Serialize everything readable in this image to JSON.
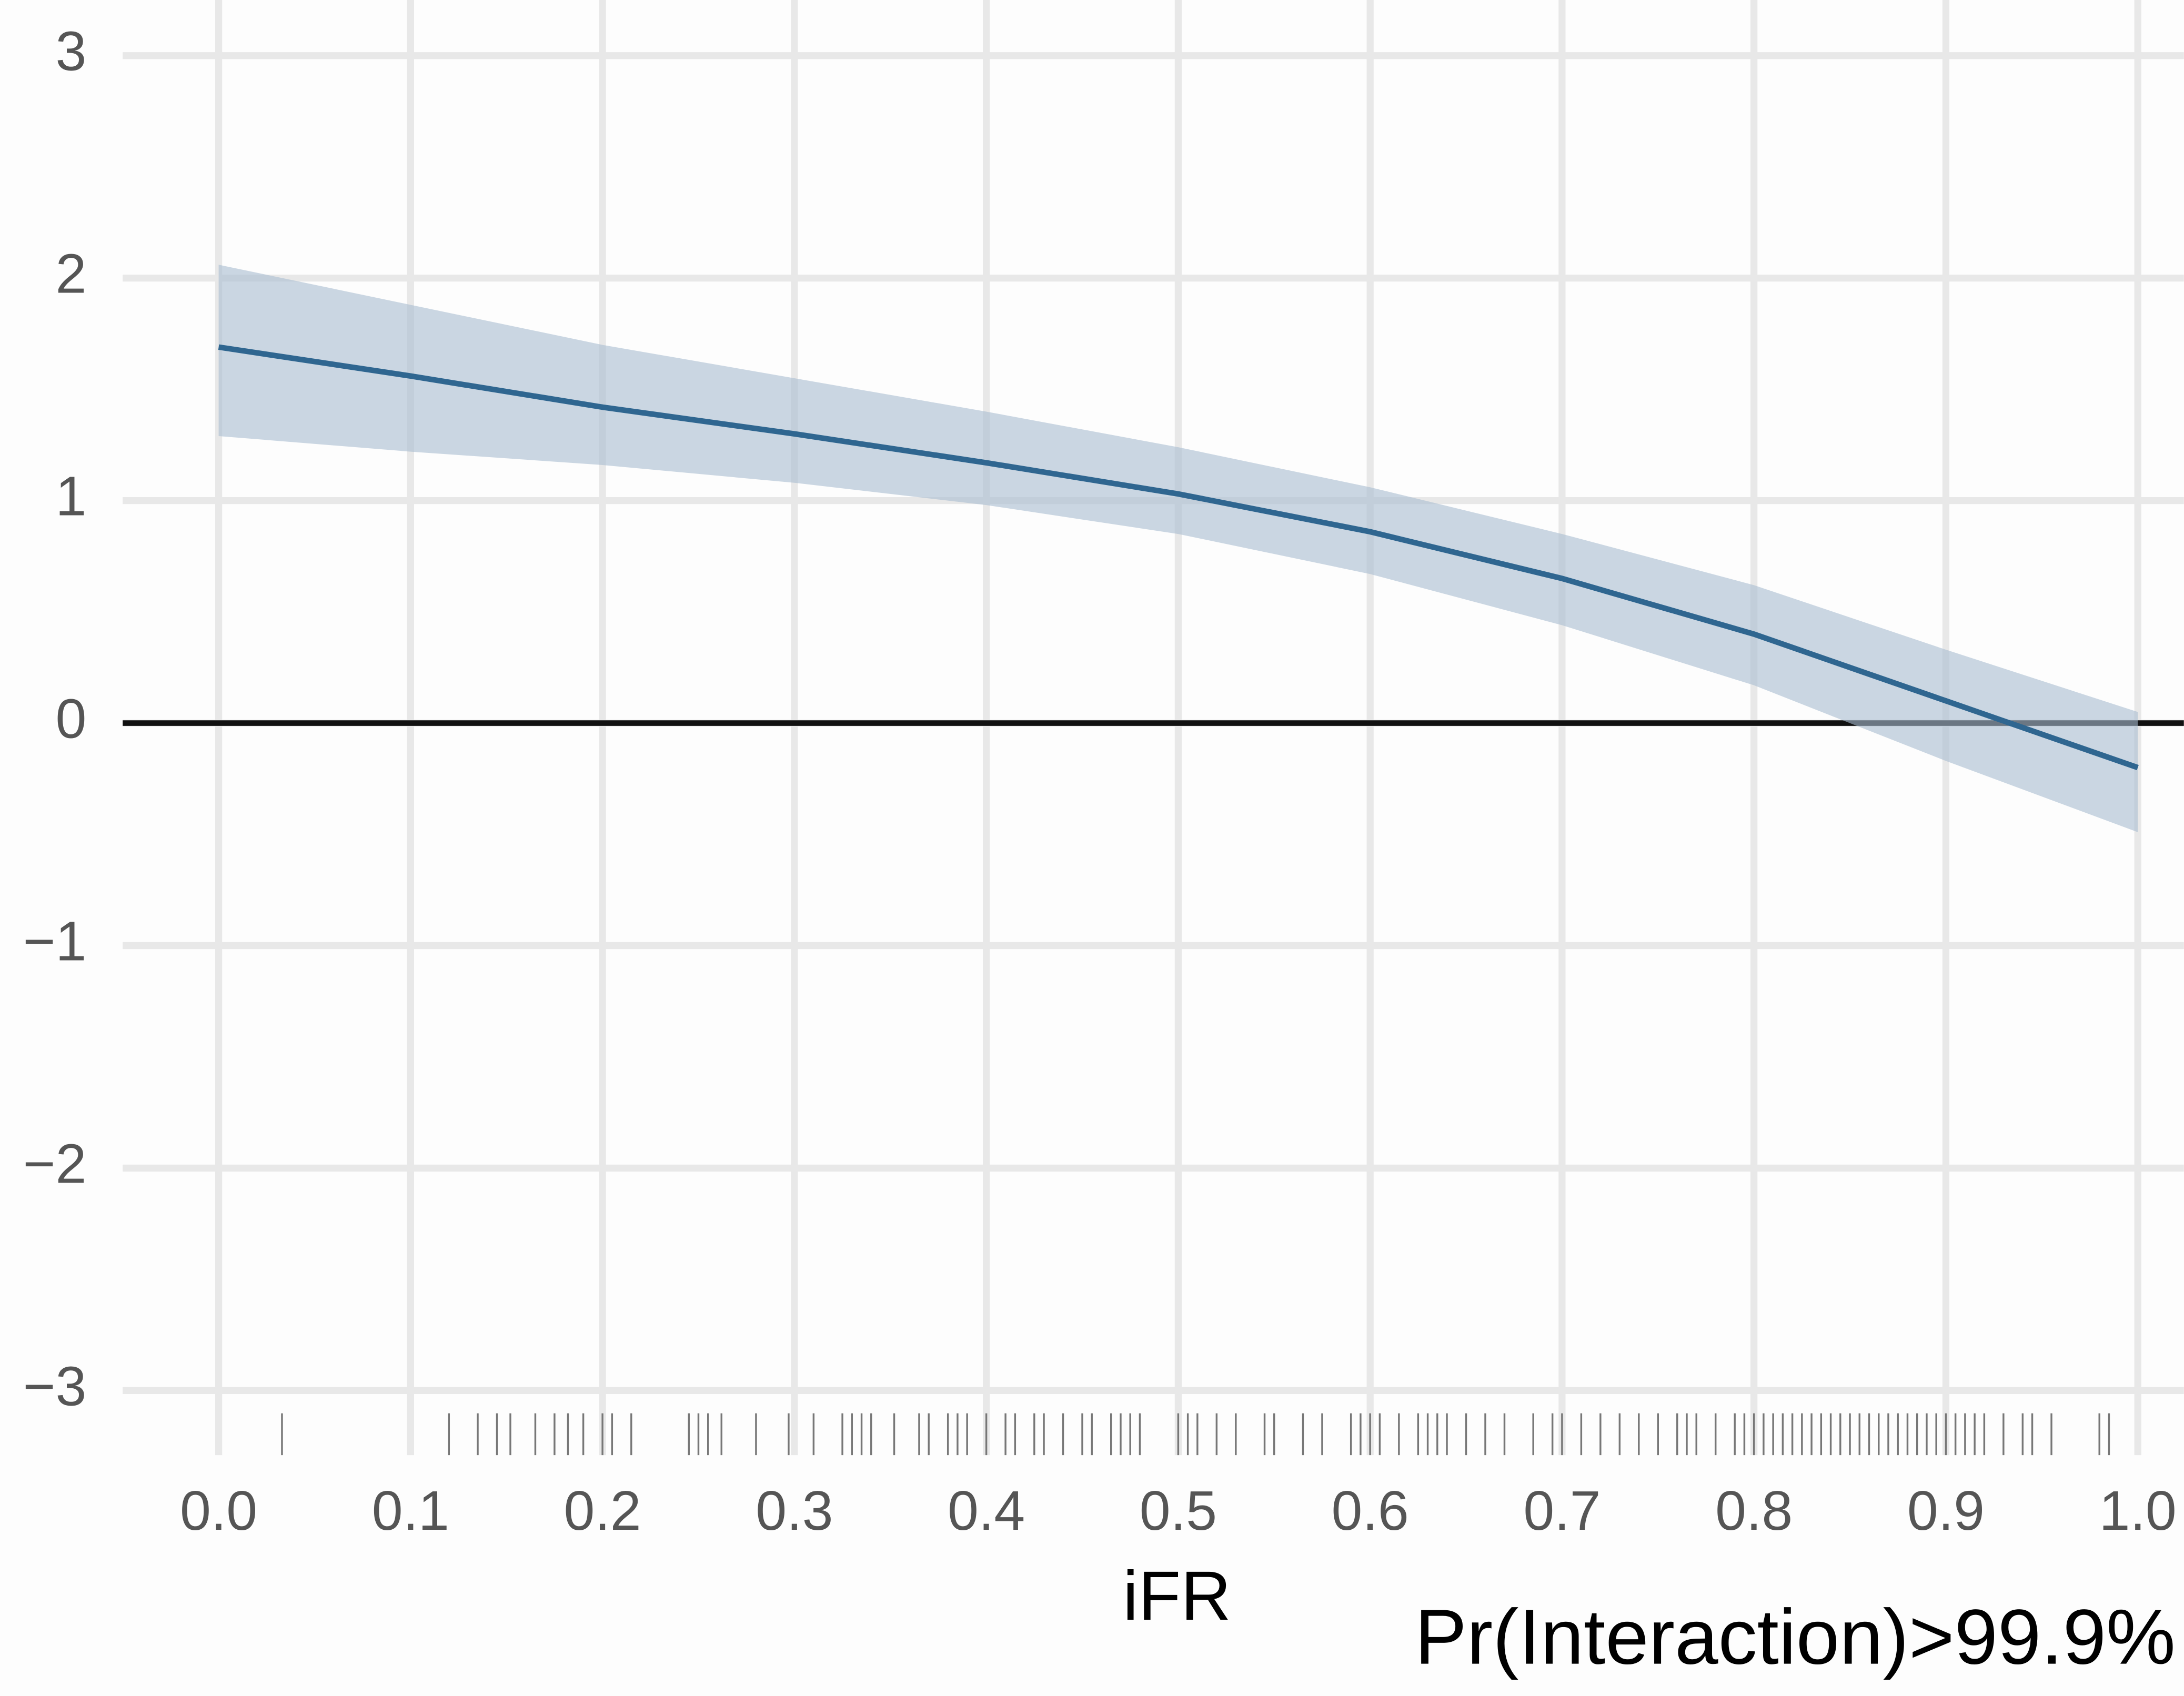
{
  "chart_data": {
    "type": "line",
    "x_label": "iFR",
    "annotation": "Pr(Interaction)>99.9%",
    "x": [
      0,
      0.1,
      0.2,
      0.3,
      0.4,
      0.5,
      0.6,
      0.7,
      0.8,
      0.9,
      1.0
    ],
    "series": [
      {
        "color": "#2f6690",
        "values": [
          1.69,
          1.56,
          1.42,
          1.3,
          1.17,
          1.03,
          0.86,
          0.65,
          0.4,
          0.1,
          -0.2
        ]
      }
    ],
    "band": {
      "color": "#a9bdd0",
      "lower": [
        1.29,
        1.22,
        1.16,
        1.08,
        0.98,
        0.85,
        0.67,
        0.44,
        0.17,
        -0.17,
        -0.49
      ],
      "upper": [
        2.06,
        1.88,
        1.7,
        1.55,
        1.4,
        1.24,
        1.06,
        0.85,
        0.62,
        0.33,
        0.05
      ]
    },
    "reference_line": 0,
    "rug": [
      0.033,
      0.12,
      0.135,
      0.145,
      0.152,
      0.165,
      0.175,
      0.182,
      0.19,
      0.2,
      0.205,
      0.215,
      0.245,
      0.25,
      0.255,
      0.262,
      0.28,
      0.297,
      0.31,
      0.325,
      0.33,
      0.335,
      0.34,
      0.352,
      0.365,
      0.37,
      0.38,
      0.385,
      0.39,
      0.4,
      0.41,
      0.415,
      0.425,
      0.43,
      0.44,
      0.45,
      0.455,
      0.465,
      0.47,
      0.475,
      0.48,
      0.5,
      0.505,
      0.51,
      0.52,
      0.53,
      0.545,
      0.55,
      0.565,
      0.575,
      0.59,
      0.595,
      0.6,
      0.605,
      0.615,
      0.625,
      0.63,
      0.635,
      0.64,
      0.65,
      0.66,
      0.67,
      0.685,
      0.695,
      0.7,
      0.71,
      0.72,
      0.73,
      0.74,
      0.75,
      0.76,
      0.765,
      0.77,
      0.78,
      0.79,
      0.795,
      0.8,
      0.805,
      0.81,
      0.815,
      0.82,
      0.825,
      0.83,
      0.835,
      0.84,
      0.845,
      0.85,
      0.855,
      0.86,
      0.865,
      0.87,
      0.875,
      0.88,
      0.885,
      0.89,
      0.895,
      0.9,
      0.905,
      0.91,
      0.915,
      0.92,
      0.93,
      0.94,
      0.945,
      0.955,
      0.98,
      0.985
    ],
    "xlim": [
      -0.05,
      1.024
    ],
    "ylim": [
      -3.29,
      3.25
    ],
    "xticks": [
      {
        "value": 0,
        "label": "0.0"
      },
      0.1,
      0.2,
      0.3,
      0.4,
      0.5,
      0.6,
      0.7,
      0.8,
      0.9,
      {
        "value": 1,
        "label": "1.0"
      }
    ],
    "yticks": [
      {
        "value": -3,
        "label": "−3"
      },
      {
        "value": -2,
        "label": "−2"
      },
      {
        "value": -1,
        "label": "−1"
      },
      0,
      1,
      2,
      3
    ],
    "grid": true
  }
}
